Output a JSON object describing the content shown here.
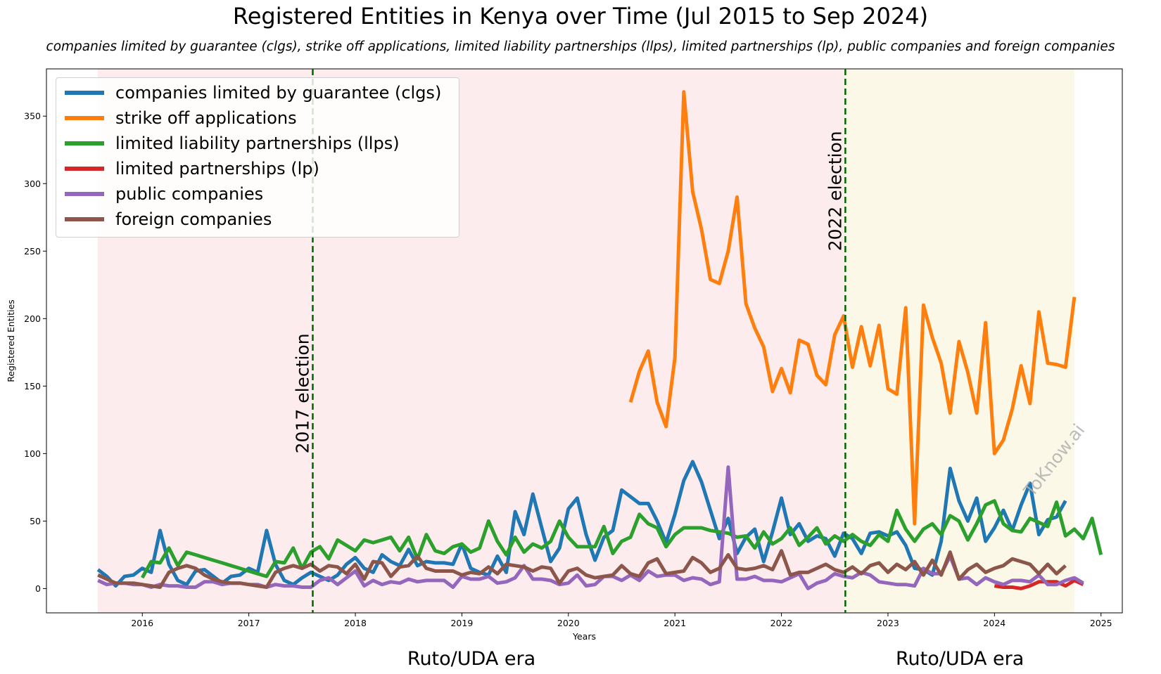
{
  "chart_data": {
    "type": "line",
    "title": "Registered Entities in Kenya over Time (Jul 2015 to Sep 2024)",
    "subtitle": "companies limited by guarantee (clgs), strike off applications, limited liability partnerships (llps), limited partnerships (lp), public companies and foreign companies",
    "xlabel": "Years",
    "ylabel": "Registered Entities",
    "xlim": [
      2015.1,
      2025.2
    ],
    "ylim": [
      -18,
      385
    ],
    "x_ticks": [
      "2016",
      "2017",
      "2018",
      "2019",
      "2020",
      "2021",
      "2022",
      "2023",
      "2024",
      "2025"
    ],
    "y_ticks": [
      "0",
      "50",
      "100",
      "150",
      "200",
      "250",
      "300",
      "350"
    ],
    "legend_position": "upper-left",
    "watermark": "ToKnow.ai",
    "eras": [
      {
        "label": "Ruto/UDA era",
        "start": 2015.58,
        "end": 2022.6,
        "color": "#fdecee"
      },
      {
        "label": "Ruto/UDA era",
        "start": 2022.6,
        "end": 2024.75,
        "color": "#fcf8e8"
      }
    ],
    "events": [
      {
        "label": "2017 election",
        "x": 2017.6,
        "color": "#006400"
      },
      {
        "label": "2022 election",
        "x": 2022.6,
        "color": "#006400"
      }
    ],
    "series": [
      {
        "name": "companies limited by guarantee (clgs)",
        "color": "#1f77b4",
        "start": [
          2015,
          8
        ],
        "values": [
          14,
          9,
          2,
          9,
          10,
          15,
          12,
          43,
          18,
          6,
          3,
          13,
          14,
          9,
          4,
          9,
          10,
          15,
          12,
          43,
          18,
          6,
          3,
          8,
          12,
          9,
          6,
          10,
          18,
          23,
          15,
          12,
          25,
          20,
          17,
          29,
          17,
          20,
          19,
          19,
          18,
          33,
          15,
          12,
          10,
          24,
          12,
          57,
          40,
          70,
          45,
          20,
          30,
          59,
          67,
          40,
          21,
          38,
          43,
          73,
          68,
          63,
          63,
          50,
          34,
          55,
          80,
          94,
          79,
          58,
          37,
          52,
          26,
          38,
          44,
          20,
          42,
          67,
          40,
          48,
          35,
          39,
          37,
          24,
          41,
          37,
          26,
          41,
          42,
          39,
          42,
          32,
          15,
          14,
          10,
          35,
          89,
          65,
          50,
          67,
          35,
          45,
          58,
          43,
          62,
          78,
          40,
          51,
          53,
          65
        ]
      },
      {
        "name": "strike off applications",
        "color": "#ff7f0e",
        "start": [
          2020,
          8
        ],
        "values": [
          138,
          161,
          176,
          138,
          120,
          171,
          368,
          294,
          266,
          229,
          226,
          250,
          290,
          211,
          193,
          179,
          146,
          163,
          145,
          184,
          181,
          158,
          151,
          188,
          202,
          164,
          194,
          165,
          195,
          148,
          144,
          208,
          48,
          210,
          186,
          167,
          130,
          183,
          160,
          130,
          197,
          100,
          110,
          133,
          165,
          137,
          205,
          167,
          166,
          164,
          216
        ]
      },
      {
        "name": "limited liability partnerships (llps)",
        "color": "#2ca02c",
        "start": [
          2016,
          1
        ],
        "values": [
          8,
          20,
          19,
          30,
          17,
          27,
          25,
          23,
          21,
          19,
          17,
          15,
          13,
          11,
          9,
          20,
          19,
          30,
          15,
          27,
          31,
          22,
          36,
          32,
          28,
          36,
          34,
          36,
          38,
          28,
          38,
          22,
          40,
          28,
          26,
          31,
          33,
          27,
          30,
          50,
          35,
          25,
          38,
          27,
          33,
          30,
          35,
          50,
          38,
          31,
          31,
          31,
          46,
          26,
          35,
          38,
          55,
          48,
          45,
          31,
          40,
          45,
          45,
          45,
          43,
          42,
          41,
          38,
          39,
          30,
          42,
          33,
          37,
          45,
          32,
          38,
          45,
          33,
          39,
          35,
          40,
          35,
          32,
          40,
          35,
          58,
          44,
          35,
          44,
          48,
          40,
          54,
          50,
          36,
          48,
          62,
          65,
          48,
          43,
          42,
          52,
          49,
          46,
          64,
          39,
          44,
          37,
          52,
          25
        ]
      },
      {
        "name": "limited partnerships (lp)",
        "color": "#d62728",
        "start": [
          2024,
          1
        ],
        "values": [
          2,
          1,
          1,
          0,
          2,
          5,
          5,
          5,
          2,
          6,
          3
        ]
      },
      {
        "name": "public companies",
        "color": "#9467bd",
        "start": [
          2015,
          8
        ],
        "values": [
          6,
          3,
          4,
          4,
          3,
          3,
          1,
          3,
          2,
          2,
          1,
          1,
          5,
          5,
          3,
          4,
          4,
          3,
          3,
          1,
          3,
          2,
          2,
          1,
          1,
          6,
          8,
          3,
          8,
          13,
          2,
          6,
          3,
          5,
          4,
          7,
          5,
          6,
          6,
          6,
          1,
          9,
          7,
          7,
          9,
          4,
          5,
          8,
          17,
          7,
          7,
          6,
          3,
          4,
          10,
          2,
          3,
          9,
          9,
          6,
          10,
          6,
          13,
          9,
          10,
          10,
          6,
          8,
          7,
          3,
          5,
          90,
          7,
          7,
          9,
          6,
          6,
          5,
          8,
          11,
          0,
          4,
          6,
          11,
          9,
          8,
          12,
          10,
          5,
          4,
          3,
          3,
          2,
          15,
          11,
          11,
          24,
          7,
          8,
          3,
          8,
          5,
          3,
          6,
          6,
          5,
          10,
          3,
          3,
          6,
          8,
          4
        ]
      },
      {
        "name": "foreign companies",
        "color": "#8c564b",
        "start": [
          2015,
          8
        ],
        "values": [
          10,
          7,
          4,
          4,
          4,
          3,
          2,
          1,
          12,
          15,
          17,
          15,
          10,
          7,
          5,
          4,
          4,
          3,
          2,
          1,
          12,
          15,
          17,
          15,
          18,
          13,
          17,
          16,
          11,
          18,
          7,
          20,
          19,
          9,
          16,
          17,
          24,
          15,
          13,
          13,
          13,
          10,
          12,
          11,
          16,
          11,
          18,
          17,
          16,
          13,
          16,
          15,
          4,
          13,
          15,
          10,
          8,
          9,
          10,
          17,
          11,
          9,
          19,
          22,
          11,
          12,
          13,
          23,
          19,
          12,
          15,
          25,
          15,
          14,
          15,
          17,
          14,
          28,
          10,
          12,
          12,
          15,
          18,
          14,
          12,
          16,
          11,
          17,
          19,
          12,
          18,
          14,
          20,
          10,
          21,
          10,
          27,
          7,
          14,
          18,
          12,
          15,
          17,
          22,
          20,
          18,
          11,
          18,
          11,
          17
        ]
      }
    ]
  }
}
